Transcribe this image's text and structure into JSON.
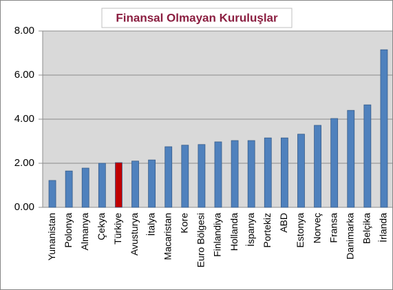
{
  "chart_data": {
    "type": "bar",
    "title": "Finansal Olmayan Kuruluşlar",
    "categories": [
      "Yunanistan",
      "Polonya",
      "Almanya",
      "Çekya",
      "Türkiye",
      "Avusturya",
      "İtalya",
      "Macaristan",
      "Kore",
      "Euro Bölgesi",
      "Finlandiya",
      "Hollanda",
      "İspanya",
      "Portekiz",
      "ABD",
      "Estonya",
      "Norveç",
      "Fransa",
      "Danimarka",
      "Belçika",
      "İrlanda"
    ],
    "values": [
      1.22,
      1.65,
      1.78,
      2.0,
      2.03,
      2.1,
      2.15,
      2.75,
      2.82,
      2.85,
      2.97,
      3.03,
      3.03,
      3.15,
      3.15,
      3.32,
      3.72,
      4.03,
      4.4,
      4.65,
      7.15
    ],
    "colors": [
      "#4f81bd",
      "#4f81bd",
      "#4f81bd",
      "#4f81bd",
      "#c00000",
      "#4f81bd",
      "#4f81bd",
      "#4f81bd",
      "#4f81bd",
      "#4f81bd",
      "#4f81bd",
      "#4f81bd",
      "#4f81bd",
      "#4f81bd",
      "#4f81bd",
      "#4f81bd",
      "#4f81bd",
      "#4f81bd",
      "#4f81bd",
      "#4f81bd",
      "#4f81bd"
    ],
    "ylim": [
      0,
      8
    ],
    "yticks": [
      {
        "value": 0,
        "label": "0.00"
      },
      {
        "value": 2,
        "label": "2.00"
      },
      {
        "value": 4,
        "label": "4.00"
      },
      {
        "value": 6,
        "label": "6.00"
      },
      {
        "value": 8,
        "label": "8.00"
      }
    ],
    "grid": true
  }
}
